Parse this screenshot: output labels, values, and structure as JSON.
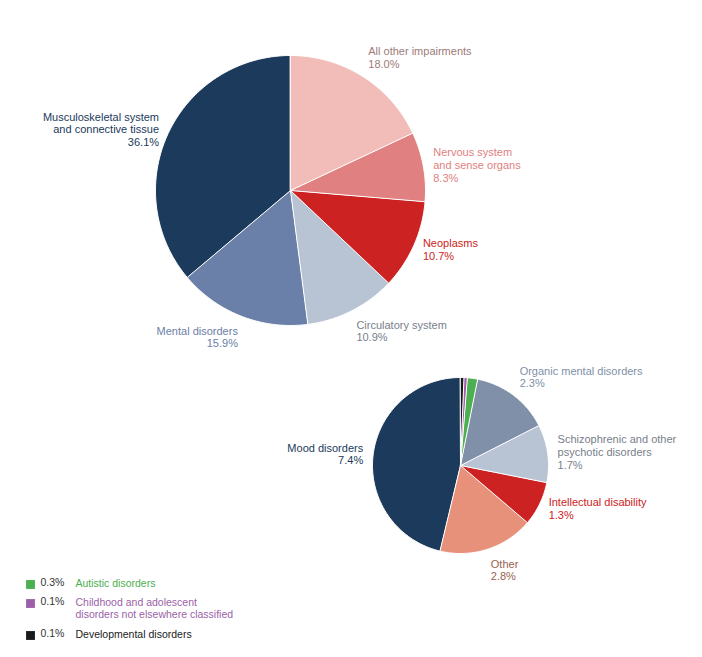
{
  "chart_data": [
    {
      "type": "pie",
      "categories": [
        "Musculoskeletal system\nand connective tissue",
        "Mental disorders",
        "Circulatory system",
        "Neoplasms",
        "Nervous system\nand sense organs",
        "All other impairments"
      ],
      "values": [
        36.1,
        15.9,
        10.9,
        10.7,
        8.3,
        18.0
      ],
      "value_labels": [
        "36.1%",
        "15.9%",
        "10.9%",
        "10.7%",
        "8.3%",
        "18.0%"
      ],
      "colors": [
        "#1b3a5c",
        "#6b80a8",
        "#b8c4d4",
        "#cc2222",
        "#e08080",
        "#f2bdb8"
      ]
    },
    {
      "type": "pie",
      "categories": [
        "Mood disorders",
        "Other",
        "Intellectual disability",
        "Schizophrenic and other\npsychotic disorders",
        "Organic mental disorders",
        "Autistic disorders",
        "Childhood and adolescent\ndisorders not elsewhere classified",
        "Developmental disorders"
      ],
      "values": [
        7.4,
        2.8,
        1.3,
        1.7,
        2.3,
        0.3,
        0.1,
        0.1
      ],
      "value_labels": [
        "7.4%",
        "2.8%",
        "1.3%",
        "1.7%",
        "2.3%",
        "0.3%",
        "0.1%",
        "0.1%"
      ],
      "colors": [
        "#1b3a5c",
        "#e8917a",
        "#cc2222",
        "#b8c4d4",
        "#8090a8",
        "#4caf50",
        "#9c5fa8",
        "#1a1a1a"
      ],
      "legend": "lower left"
    }
  ]
}
